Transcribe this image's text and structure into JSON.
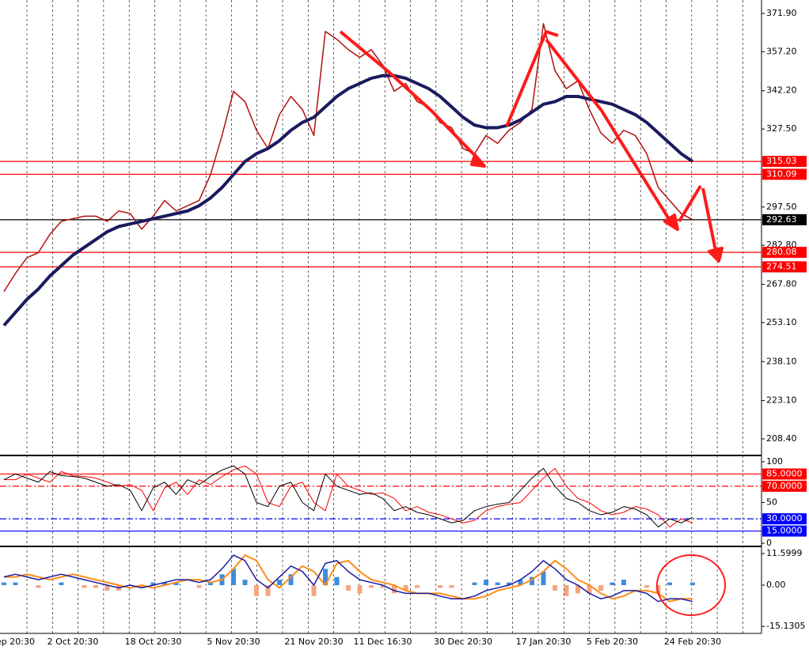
{
  "chart_data": [
    {
      "type": "line",
      "ylim": [
        202.32,
        377.07
      ],
      "yticks": [
        {
          "value": 371.9,
          "label": "371.90"
        },
        {
          "value": 357.2,
          "label": "357.20"
        },
        {
          "value": 342.2,
          "label": "342.20"
        },
        {
          "value": 327.5,
          "label": "327.50"
        },
        {
          "value": 297.5,
          "label": "297.50"
        },
        {
          "value": 282.8,
          "label": "282.80"
        },
        {
          "value": 267.8,
          "label": "267.80"
        },
        {
          "value": 253.1,
          "label": "253.10"
        },
        {
          "value": 238.1,
          "label": "238.10"
        },
        {
          "value": 223.1,
          "label": "223.10"
        },
        {
          "value": 208.4,
          "label": "208.40"
        }
      ],
      "levels": [
        315.03,
        310.09,
        292.63,
        280.08,
        274.51
      ],
      "level_colors": [
        "#ff0000",
        "#ff0000",
        "#000000",
        "#ff0000",
        "#ff0000"
      ],
      "level_styles": [
        "solid",
        "solid",
        "solid",
        "solid",
        "solid"
      ],
      "series": [
        {
          "type": "line",
          "color": "#b01010",
          "width": 1.5,
          "values": [
            265,
            272,
            278,
            280,
            287,
            292,
            293,
            294,
            294,
            292,
            296,
            295,
            289,
            294,
            300,
            296,
            298,
            300,
            310,
            325,
            342,
            338,
            327,
            320,
            333,
            340,
            335,
            325,
            365,
            362,
            358,
            355,
            358,
            352,
            342,
            345,
            338,
            336,
            330,
            328,
            320,
            318,
            325,
            322,
            327,
            330,
            335,
            368,
            350,
            343,
            346,
            335,
            326,
            322,
            327,
            325,
            318,
            305,
            300,
            295,
            292.63
          ]
        },
        {
          "type": "line",
          "color": "#1a1a5e",
          "width": 4,
          "values": [
            252,
            257,
            262,
            266,
            271,
            275,
            279,
            282,
            285,
            288,
            290,
            291,
            292,
            293,
            294,
            295,
            296,
            298,
            301,
            305,
            310,
            315,
            318,
            320,
            323,
            327,
            330,
            332,
            336,
            340,
            343,
            345,
            347,
            348,
            348,
            347,
            345,
            343,
            340,
            336,
            332,
            329,
            328,
            328,
            329,
            331,
            334,
            337,
            338,
            340,
            340,
            339,
            338,
            337,
            335,
            333,
            330,
            326,
            322,
            318,
            315
          ]
        }
      ]
    },
    {
      "type": "line",
      "ylim": [
        -2.9,
        106.8
      ],
      "yticks": [
        100,
        50,
        0
      ],
      "levels": [
        {
          "value": 85,
          "label": "85.0000"
        },
        {
          "value": 70,
          "label": "70.0000"
        },
        {
          "value": 30,
          "label": "30.0000"
        },
        {
          "value": 15,
          "label": "15.0000"
        }
      ],
      "level_colors": [
        "#ff0000",
        "#ff0000",
        "#0000ff",
        "#0000ff"
      ],
      "level_styles": [
        "solid",
        "dashdot",
        "dashdot",
        "solid"
      ],
      "series": [
        {
          "type": "line",
          "color": "#ff0000",
          "width": 1,
          "values": [
            78,
            78,
            85,
            80,
            75,
            88,
            83,
            82,
            80,
            75,
            70,
            72,
            65,
            40,
            68,
            75,
            60,
            78,
            72,
            82,
            90,
            95,
            85,
            50,
            45,
            70,
            75,
            50,
            40,
            85,
            70,
            65,
            60,
            62,
            55,
            40,
            45,
            38,
            35,
            30,
            25,
            28,
            40,
            45,
            48,
            50,
            65,
            80,
            92,
            70,
            55,
            50,
            40,
            35,
            38,
            45,
            42,
            35,
            20,
            30,
            25
          ]
        },
        {
          "type": "line",
          "color": "#000000",
          "width": 1,
          "values": [
            78,
            85,
            80,
            75,
            88,
            83,
            82,
            80,
            75,
            70,
            72,
            65,
            40,
            68,
            75,
            60,
            78,
            72,
            82,
            90,
            95,
            85,
            50,
            45,
            70,
            75,
            50,
            40,
            85,
            70,
            65,
            60,
            62,
            55,
            40,
            45,
            38,
            35,
            30,
            25,
            28,
            40,
            45,
            48,
            50,
            65,
            80,
            92,
            70,
            55,
            50,
            40,
            35,
            38,
            45,
            42,
            35,
            20,
            30,
            25,
            32
          ]
        }
      ]
    },
    {
      "type": "bar",
      "ylim": [
        -17.4,
        13.92
      ],
      "yticks": [
        11.5999,
        {
          "value": 0,
          "label": "0.00"
        },
        -15.1305
      ],
      "categories": [
        null,
        "ep 20:30",
        null,
        null,
        null,
        null,
        "2 Oct 20:30",
        null,
        null,
        null,
        null,
        null,
        null,
        "18 Oct 20:30",
        null,
        null,
        null,
        null,
        null,
        null,
        "5 Nov 20:30",
        null,
        null,
        null,
        null,
        null,
        null,
        "21 Nov 20:30",
        null,
        null,
        null,
        null,
        null,
        "11 Dec 16:30",
        null,
        null,
        null,
        null,
        null,
        null,
        "30 Dec 20:30",
        null,
        null,
        null,
        null,
        null,
        null,
        "17 Jan 20:30",
        null,
        null,
        null,
        null,
        null,
        "5 Feb 20:30",
        null,
        null,
        null,
        null,
        null,
        null,
        "24 Feb 20:30"
      ],
      "series": [
        {
          "type": "bar",
          "colors": [
            "#3c8ce0",
            "#f4a582"
          ],
          "values": [
            1,
            1,
            0,
            -1,
            0,
            1,
            0,
            -1,
            -1,
            -2,
            -2,
            0,
            -1,
            1,
            1,
            1,
            0,
            -1,
            1,
            4,
            6,
            2,
            -4,
            -4,
            2,
            4,
            0,
            -4,
            6,
            3,
            -2,
            -3,
            -1,
            -1,
            -3,
            -2,
            -1,
            0,
            -1,
            -1,
            0,
            1,
            2,
            1,
            1,
            2,
            3,
            5,
            -2,
            -4,
            -3,
            -3,
            -2,
            1,
            2,
            0,
            -1,
            -3,
            1,
            0,
            1
          ]
        },
        {
          "type": "line",
          "color": "#ff8c1a",
          "width": 2,
          "values": [
            3,
            3,
            4,
            3,
            2,
            3,
            4,
            3,
            2,
            1,
            0,
            -1,
            0,
            -1,
            0,
            1,
            2,
            2,
            1,
            2,
            6,
            11,
            9,
            2,
            -1,
            3,
            7,
            5,
            0,
            8,
            9,
            5,
            2,
            1,
            0,
            -2,
            -3,
            -3,
            -3,
            -4,
            -5,
            -5,
            -4,
            -2,
            -1,
            0,
            2,
            5,
            9,
            6,
            2,
            0,
            -3,
            -5,
            -4,
            -2,
            -2,
            -3,
            -6,
            -5,
            -5
          ]
        },
        {
          "type": "line",
          "color": "#1a1aa0",
          "width": 1.5,
          "values": [
            3,
            4,
            3,
            2,
            3,
            4,
            3,
            2,
            1,
            0,
            -1,
            0,
            -1,
            0,
            1,
            2,
            2,
            1,
            2,
            6,
            11,
            9,
            2,
            -1,
            3,
            7,
            5,
            0,
            8,
            9,
            5,
            2,
            1,
            0,
            -2,
            -3,
            -3,
            -3,
            -4,
            -5,
            -5,
            -4,
            -2,
            -1,
            0,
            2,
            5,
            9,
            6,
            2,
            0,
            -3,
            -5,
            -4,
            -2,
            -2,
            -3,
            -6,
            -5,
            -5,
            -6
          ]
        }
      ]
    }
  ]
}
